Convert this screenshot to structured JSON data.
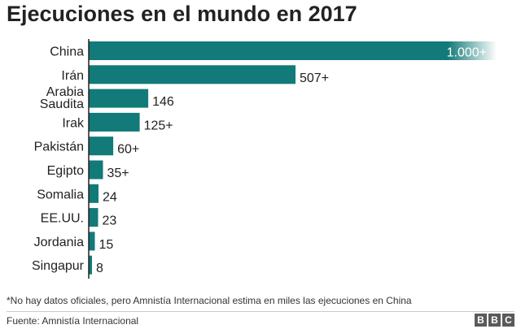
{
  "chart_data": {
    "type": "bar",
    "orientation": "horizontal",
    "title": "Ejecuciones en el mundo en 2017",
    "categories": [
      "China",
      "Irán",
      "Arabia Saudita",
      "Irak",
      "Pakistán",
      "Egipto",
      "Somalia",
      "EE.UU.",
      "Jordania",
      "Singapur"
    ],
    "values": [
      1000,
      507,
      146,
      125,
      60,
      35,
      24,
      23,
      15,
      8
    ],
    "value_labels": [
      "1.000+",
      "507+",
      "146",
      "125+",
      "60+",
      "35+",
      "24",
      "23",
      "15",
      "8"
    ],
    "xlim": [
      0,
      1000
    ],
    "grid": false,
    "legend": "none"
  },
  "footnote": "*No hay datos oficiales, pero Amnistía Internacional estima en miles las ejecuciones en China",
  "source": "Fuente: Amnistía Internacional",
  "logo": [
    "B",
    "B",
    "C"
  ],
  "colors": {
    "bar": "#127a78",
    "text": "#222222",
    "axis": "#222222"
  }
}
